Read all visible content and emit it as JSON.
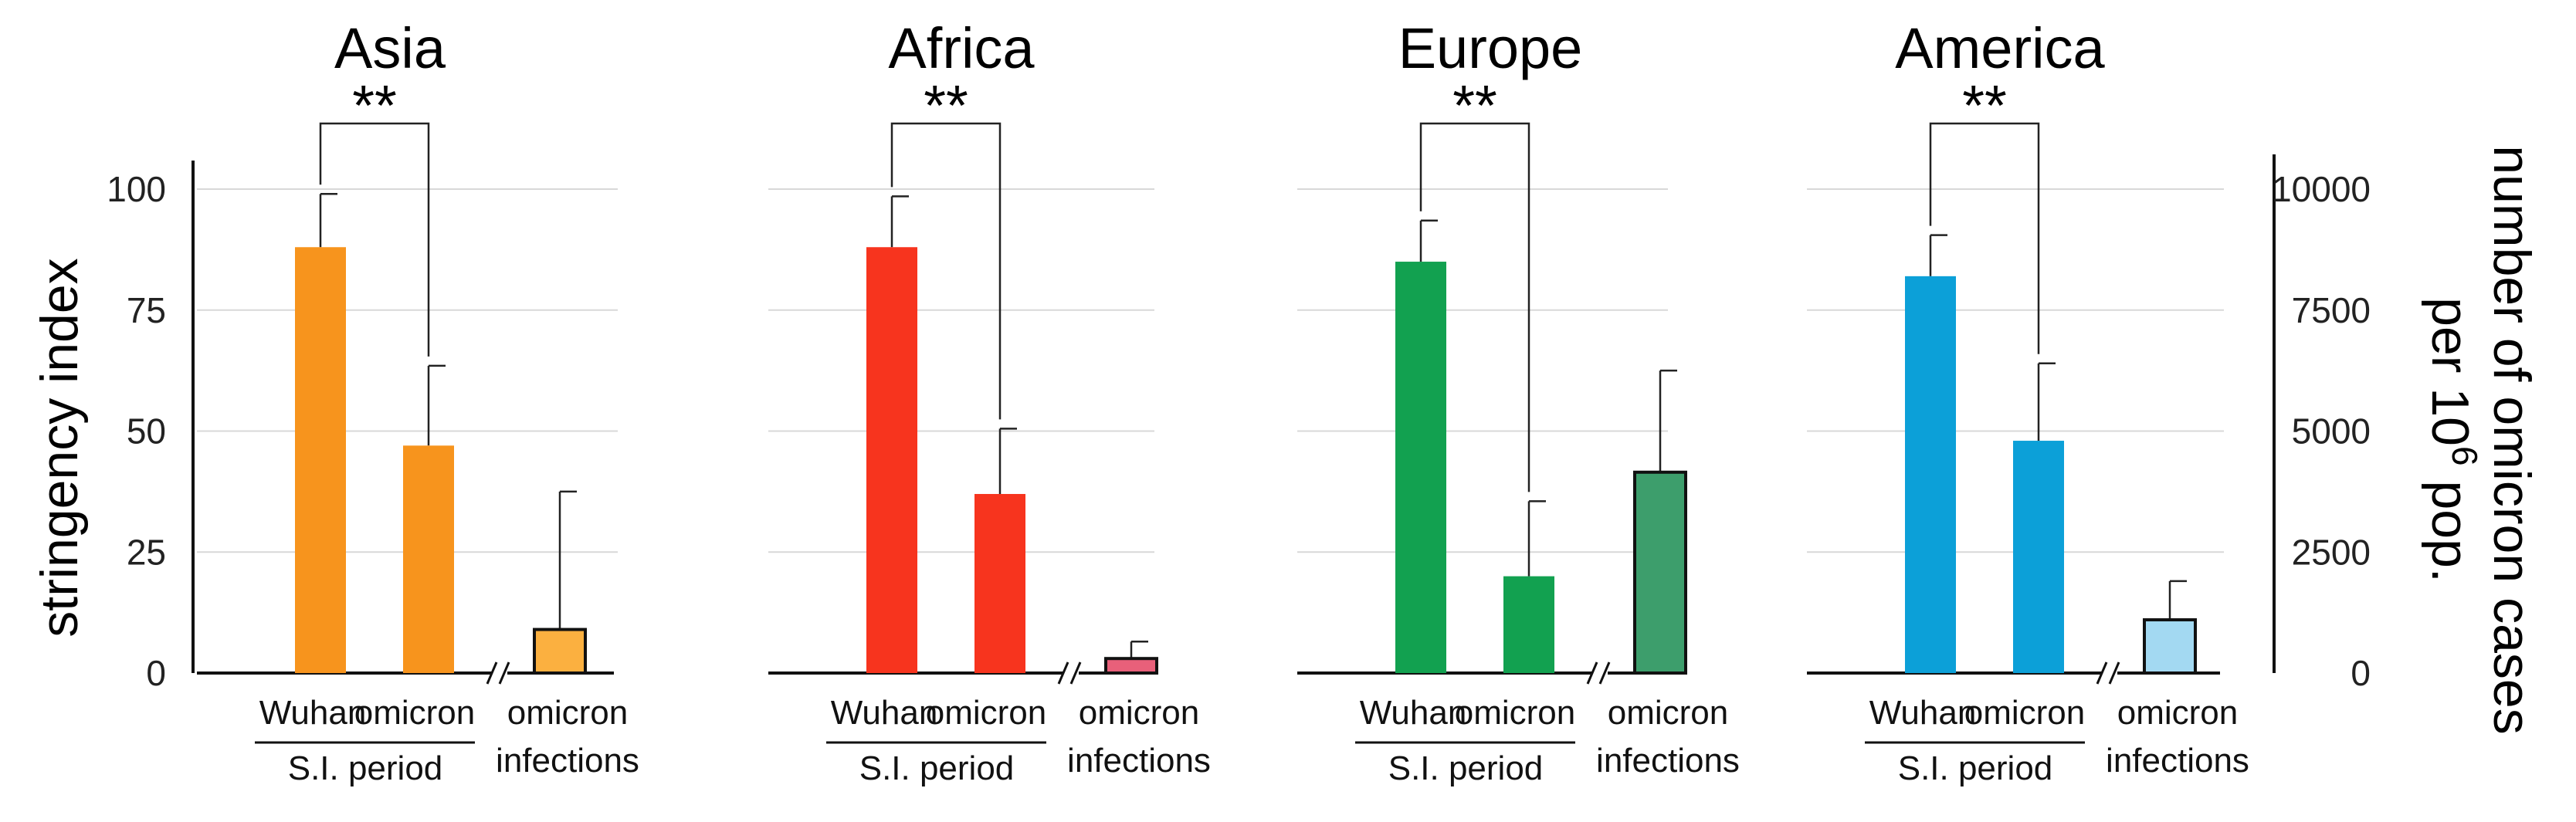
{
  "chart_data": {
    "type": "bar",
    "left_axis": {
      "label": "stringency index",
      "ticks": [
        "0",
        "25",
        "50",
        "75",
        "100"
      ],
      "range": [
        0,
        100
      ]
    },
    "right_axis": {
      "label_line1": "number of omicron cases",
      "label_line2_prefix": "per 10",
      "label_line2_sup": "6",
      "label_line2_suffix": " pop.",
      "ticks": [
        "0",
        "2500",
        "5000",
        "7500",
        "10000"
      ],
      "range": [
        0,
        10000
      ]
    },
    "category_labels": {
      "wuhan": "Wuhan",
      "omicron": "omicron",
      "infections_line1": "omicron",
      "infections_line2": "infections",
      "period_group": "S.I. period"
    },
    "significance": "**",
    "panels": [
      {
        "region": "Asia",
        "wuhan": {
          "value": 88,
          "err": 11,
          "color": "#F7941D"
        },
        "omicron": {
          "value": 47,
          "err": 16.5,
          "color": "#F7941D"
        },
        "infections": {
          "value": 900,
          "err": 2850,
          "color": "#FBB040"
        }
      },
      {
        "region": "Africa",
        "wuhan": {
          "value": 88,
          "err": 10.5,
          "color": "#F7341E"
        },
        "omicron": {
          "value": 37,
          "err": 13.5,
          "color": "#F7341E"
        },
        "infections": {
          "value": 300,
          "err": 350,
          "color": "#E8607A"
        }
      },
      {
        "region": "Europe",
        "wuhan": {
          "value": 85,
          "err": 8.5,
          "color": "#12A150"
        },
        "omicron": {
          "value": 20,
          "err": 15.5,
          "color": "#12A150"
        },
        "infections": {
          "value": 4150,
          "err": 2100,
          "color": "#3D9E6C"
        }
      },
      {
        "region": "America",
        "wuhan": {
          "value": 82,
          "err": 8.5,
          "color": "#0CA0D8"
        },
        "omicron": {
          "value": 48,
          "err": 16,
          "color": "#0CA0D8"
        },
        "infections": {
          "value": 1100,
          "err": 800,
          "color": "#A3D9F2"
        }
      }
    ]
  }
}
